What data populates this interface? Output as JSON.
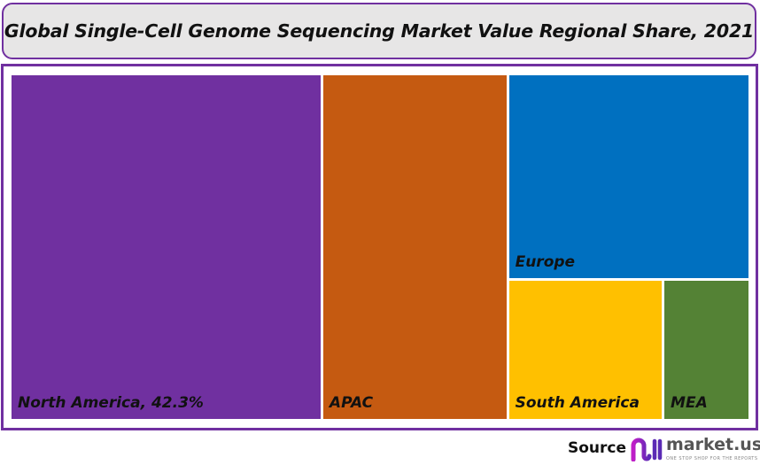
{
  "chart_data": {
    "type": "treemap",
    "title": "Global Single-Cell Genome Sequencing Market Value Regional Share, 2021",
    "unit": "%",
    "items": [
      {
        "label": "North America, 42.3%",
        "name": "North America",
        "value": 42.3,
        "color": "#7030a0"
      },
      {
        "label": "APAC",
        "name": "APAC",
        "value": 25.2,
        "color": "#c55a11"
      },
      {
        "label": "Europe",
        "name": "Europe",
        "value": 19.4,
        "color": "#0070c0"
      },
      {
        "label": "South America",
        "name": "South America",
        "value": 8.5,
        "color": "#ffc000"
      },
      {
        "label": "MEA",
        "name": "MEA",
        "value": 4.6,
        "color": "#548235"
      }
    ]
  },
  "footer": {
    "source_label": "Source",
    "brand": "market.us",
    "tagline": "ONE STOP SHOP FOR THE REPORTS"
  },
  "colors": {
    "frame": "#7030a0",
    "title_bg": "#e7e6e6"
  }
}
